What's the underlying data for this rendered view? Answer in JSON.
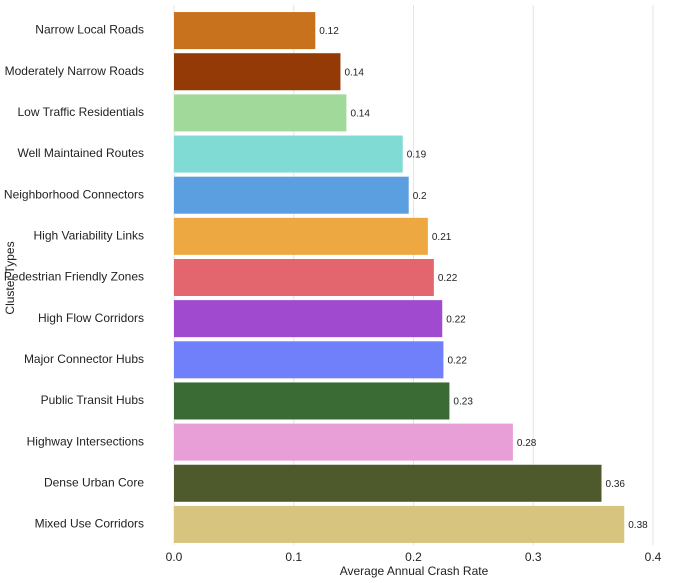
{
  "chart_data": {
    "type": "bar",
    "orientation": "horizontal",
    "xlabel": "Average Annual Crash Rate",
    "ylabel": "Cluster Types",
    "categories": [
      "Narrow Local Roads",
      "Moderately Narrow Roads",
      "Low Traffic Residentials",
      "Well Maintained Routes",
      "Neighborhood Connectors",
      "High Variability Links",
      "Pedestrian Friendly Zones",
      "High Flow Corridors",
      "Major Connector Hubs",
      "Public Transit Hubs",
      "Highway Intersections",
      "Dense Urban Core",
      "Mixed Use Corridors"
    ],
    "values": [
      0.118,
      0.139,
      0.144,
      0.191,
      0.196,
      0.212,
      0.217,
      0.224,
      0.225,
      0.23,
      0.283,
      0.357,
      0.376
    ],
    "value_labels": [
      "0.12",
      "0.14",
      "0.14",
      "0.19",
      "0.2",
      "0.21",
      "0.22",
      "0.22",
      "0.22",
      "0.23",
      "0.28",
      "0.36",
      "0.38"
    ],
    "colors": [
      "#c8721e",
      "#933a06",
      "#a1d99b",
      "#7fdbd3",
      "#5b9fe0",
      "#eda842",
      "#e3666e",
      "#a04ad0",
      "#7080fa",
      "#3b6b34",
      "#e89fd8",
      "#4f5a2c",
      "#d6c47f"
    ],
    "xlim": [
      0,
      0.4
    ],
    "xticks": [
      {
        "value": 0,
        "label": "0.0"
      },
      0.1,
      0.2,
      0.3,
      0.4
    ],
    "grid": true
  }
}
